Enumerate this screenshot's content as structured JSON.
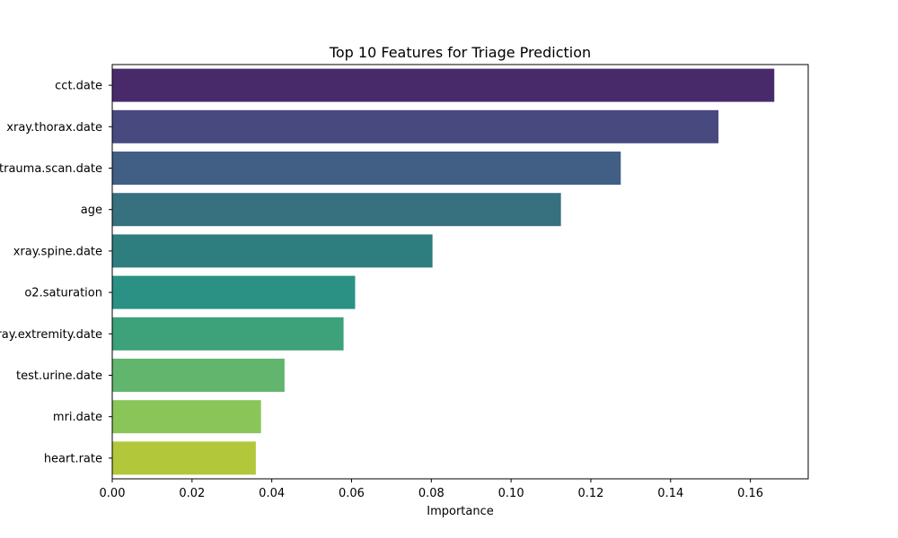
{
  "chart_data": {
    "type": "bar",
    "orientation": "horizontal",
    "title": "Top 10 Features for Triage Prediction",
    "xlabel": "Importance",
    "ylabel": "",
    "xlim": [
      0,
      0.1745
    ],
    "xticks": [
      0.0,
      0.02,
      0.04,
      0.06,
      0.08,
      0.1,
      0.12,
      0.14,
      0.16
    ],
    "xtick_labels": [
      "0.00",
      "0.02",
      "0.04",
      "0.06",
      "0.08",
      "0.10",
      "0.12",
      "0.14",
      "0.16"
    ],
    "categories": [
      "cct.date",
      "xray.thorax.date",
      "trauma.scan.date",
      "age",
      "xray.spine.date",
      "o2.saturation",
      "xray.extremity.date",
      "test.urine.date",
      "mri.date",
      "heart.rate"
    ],
    "values": [
      0.166,
      0.152,
      0.1275,
      0.1125,
      0.0803,
      0.0609,
      0.058,
      0.0432,
      0.0373,
      0.036
    ],
    "colors": [
      "#482a6b",
      "#48497f",
      "#415e85",
      "#37707f",
      "#2e7e7f",
      "#2a9184",
      "#3da17a",
      "#62b56d",
      "#8ac55a",
      "#b2c83a"
    ],
    "grid": false,
    "legend": "none"
  }
}
